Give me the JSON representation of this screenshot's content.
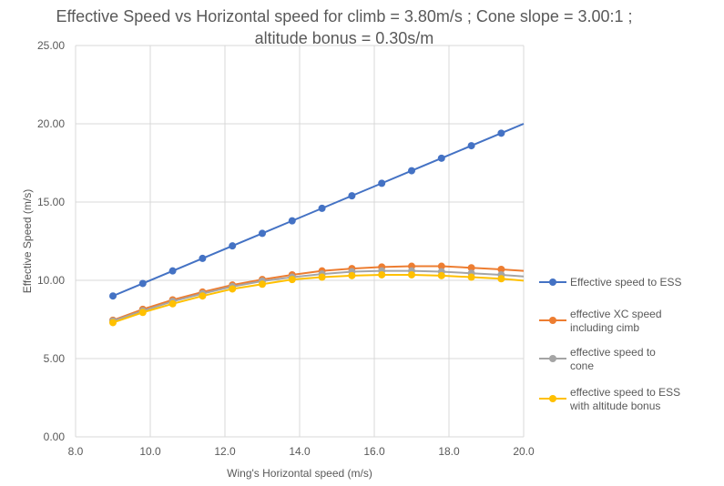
{
  "chart_data": {
    "type": "line",
    "title": "Effective Speed vs Horizontal speed for climb = 3.80m/s ; Cone slope = 3.00:1 ; altitude bonus = 0.30s/m",
    "xlabel": "Wing's Horizontal speed (m/s)",
    "ylabel": "Effective Speed (m/s)",
    "xlim": [
      8,
      20
    ],
    "ylim": [
      0,
      25
    ],
    "xticks": [
      "8.0",
      "10.0",
      "12.0",
      "14.0",
      "16.0",
      "18.0",
      "20.0"
    ],
    "yticks": [
      "0.00",
      "5.00",
      "10.00",
      "15.00",
      "20.00",
      "25.00"
    ],
    "grid": true,
    "legend": "right",
    "x": [
      9,
      9.8,
      10.6,
      11.4,
      12.2,
      13,
      13.8,
      14.6,
      15.4,
      16.2,
      17,
      17.8,
      18.6,
      19.4,
      20
    ],
    "series": [
      {
        "name": "Effective speed to ESS",
        "color": "#4472c4",
        "values": [
          9,
          9.8,
          10.6,
          11.4,
          12.2,
          13,
          13.8,
          14.6,
          15.4,
          16.2,
          17,
          17.8,
          18.6,
          19.4,
          20
        ]
      },
      {
        "name": "effective XC speed including cimb",
        "color": "#ed7d31",
        "values": [
          7.45,
          8.15,
          8.75,
          9.25,
          9.7,
          10.05,
          10.35,
          10.6,
          10.75,
          10.85,
          10.9,
          10.9,
          10.8,
          10.7,
          10.6
        ]
      },
      {
        "name": "effective speed to cone",
        "color": "#a5a5a5",
        "values": [
          7.4,
          8.05,
          8.65,
          9.15,
          9.6,
          9.95,
          10.2,
          10.4,
          10.55,
          10.6,
          10.6,
          10.55,
          10.45,
          10.35,
          10.25
        ]
      },
      {
        "name": "effective speed to ESS with altitude bonus",
        "color": "#ffc000",
        "values": [
          7.3,
          7.95,
          8.5,
          9.0,
          9.45,
          9.75,
          10.05,
          10.2,
          10.3,
          10.35,
          10.35,
          10.3,
          10.2,
          10.1,
          9.98
        ]
      }
    ]
  }
}
